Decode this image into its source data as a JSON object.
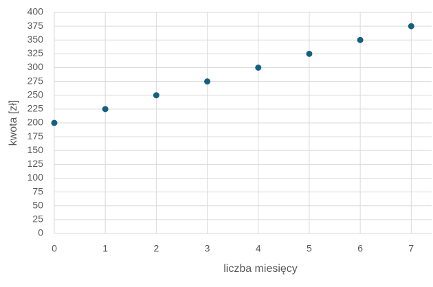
{
  "chart_data": {
    "type": "scatter",
    "x_label": "liczba miesięcy",
    "y_label": "kwota [zł]",
    "x": [
      0,
      1,
      2,
      3,
      4,
      5,
      6,
      7
    ],
    "values": [
      200,
      225,
      250,
      275,
      300,
      325,
      350,
      375
    ],
    "color": "#156082",
    "xlim": [
      0,
      7.4
    ],
    "xticks": [
      0,
      1,
      2,
      3,
      4,
      5,
      6,
      7
    ],
    "ylim": [
      0,
      400
    ],
    "yticks": [
      0,
      25,
      50,
      75,
      100,
      125,
      150,
      175,
      200,
      225,
      250,
      275,
      300,
      325,
      350,
      375,
      400
    ],
    "grid": true
  }
}
